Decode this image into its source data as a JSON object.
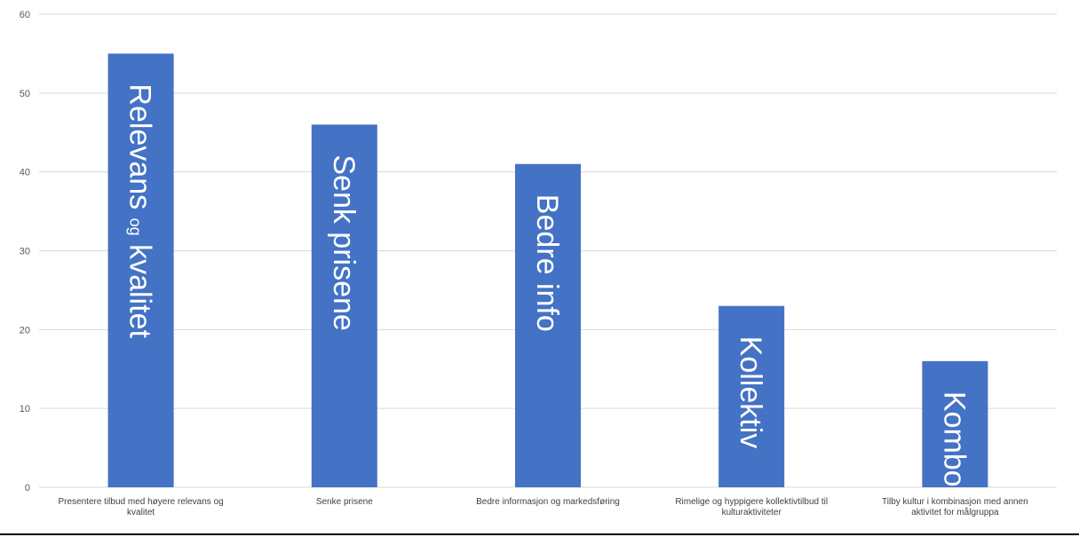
{
  "chart_data": {
    "type": "bar",
    "categories": [
      [
        "Presentere tilbud med høyere relevans og",
        "kvalitet"
      ],
      [
        "Senke prisene"
      ],
      [
        "Bedre informasjon og markedsføring"
      ],
      [
        "Rimelige og hyppigere kollektivtilbud til",
        "kulturaktiviteter"
      ],
      [
        "Tilby kultur i kombinasjon med annen",
        "aktivitet for målgruppa"
      ]
    ],
    "values": [
      55,
      46,
      41,
      23,
      16
    ],
    "bar_labels": [
      {
        "a": "Relevans ",
        "small": "og",
        "b": " kvalitet"
      },
      {
        "a": "Senk prisene"
      },
      {
        "a": "Bedre info"
      },
      {
        "a": "Kollektiv"
      },
      {
        "a": "Kombo"
      }
    ],
    "ylim": [
      0,
      60
    ],
    "yticks": [
      0,
      10,
      20,
      30,
      40,
      50,
      60
    ],
    "grid": true,
    "colors": {
      "bar": "#4472C4",
      "grid": "#d9d9d9",
      "label": "#ffffff"
    }
  }
}
